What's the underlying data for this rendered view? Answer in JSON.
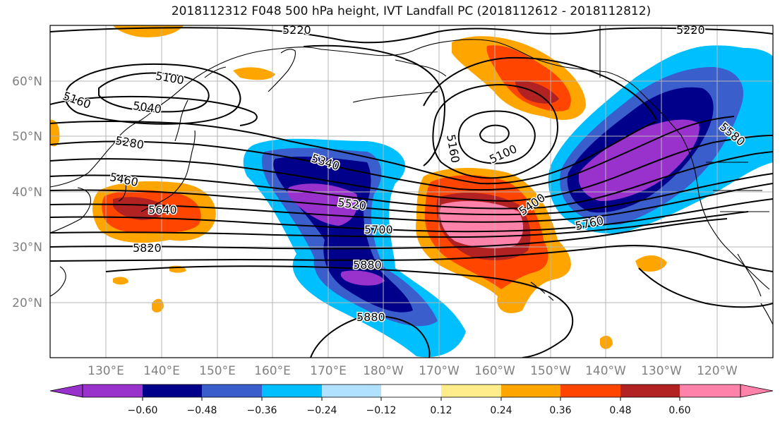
{
  "title": "2018112312 F048 500 hPa height, IVT Landfall PC (2018112612 - 2018112812)",
  "lat_labels": [
    "60°N",
    "50°N",
    "40°N",
    "30°N",
    "20°N"
  ],
  "lon_labels": [
    "130°E",
    "140°E",
    "150°E",
    "160°E",
    "170°E",
    "180°W",
    "170°W",
    "160°W",
    "150°W",
    "140°W",
    "130°W",
    "120°W"
  ],
  "contour_labels": [
    "5220",
    "5220",
    "5100",
    "5040",
    "5160",
    "5160",
    "5280",
    "5100",
    "5340",
    "5580",
    "5460",
    "5400",
    "5640",
    "5520",
    "5700",
    "5760",
    "5820",
    "5880",
    "5880"
  ],
  "colorbar": {
    "ticks": [
      "−0.60",
      "−0.48",
      "−0.36",
      "−0.24",
      "−0.12",
      "0.12",
      "0.24",
      "0.36",
      "0.48",
      "0.60"
    ],
    "colors": [
      "#9932cc",
      "#00008b",
      "#3a5fcd",
      "#00bfff",
      "#b0e2ff",
      "#ffffff",
      "#ffec8b",
      "#ffa500",
      "#ff4500",
      "#b22222",
      "#ff82ab"
    ]
  },
  "colors": {
    "purple": "#9932cc",
    "navy": "#00008b",
    "blue": "#3a5fcd",
    "sky": "#00bfff",
    "pale_blue": "#b0e2ff",
    "yellow": "#ffec8b",
    "orange": "#ffa500",
    "red_orange": "#ff4500",
    "firebrick": "#b22222",
    "pink": "#ff82ab"
  }
}
